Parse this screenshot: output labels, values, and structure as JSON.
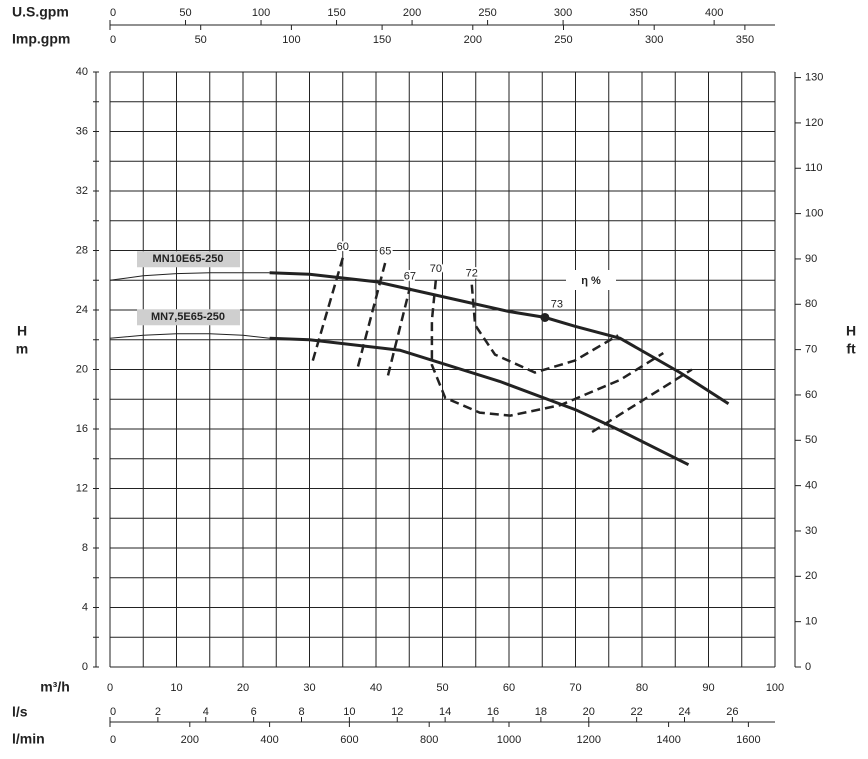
{
  "chart_data": {
    "type": "line",
    "y_label": "H",
    "y_unit": "m",
    "y2_label": "H",
    "y2_unit": "ft",
    "x_label": "m³/h",
    "xlim": [
      0,
      100
    ],
    "xticks": [
      0,
      10,
      20,
      30,
      40,
      50,
      60,
      70,
      80,
      90,
      100
    ],
    "xgrid": [
      0,
      5,
      10,
      15,
      20,
      25,
      30,
      35,
      40,
      45,
      50,
      55,
      60,
      65,
      70,
      75,
      80,
      85,
      90,
      95,
      100
    ],
    "ylim": [
      0,
      40
    ],
    "yticks": [
      0,
      4,
      8,
      12,
      16,
      20,
      24,
      28,
      32,
      36,
      40
    ],
    "ygrid": [
      0,
      2,
      4,
      6,
      8,
      10,
      12,
      14,
      16,
      18,
      20,
      22,
      24,
      26,
      28,
      30,
      32,
      34,
      36,
      38,
      40
    ],
    "y2lim": [
      0,
      131.23
    ],
    "y2ticks": [
      0,
      10,
      20,
      30,
      40,
      50,
      60,
      70,
      80,
      90,
      100,
      110,
      120,
      130
    ],
    "secondary_x_axes": [
      {
        "label": "U.S.gpm",
        "xlim": [
          0,
          440.3
        ],
        "xticks": [
          0,
          50,
          100,
          150,
          200,
          250,
          300,
          350,
          400
        ]
      },
      {
        "label": "Imp.gpm",
        "xlim": [
          0,
          366.6
        ],
        "xticks": [
          0,
          50,
          100,
          150,
          200,
          250,
          300,
          350
        ]
      },
      {
        "label": "l/s",
        "xlim": [
          0,
          27.78
        ],
        "xticks": [
          0,
          2,
          4,
          6,
          8,
          10,
          12,
          14,
          16,
          18,
          20,
          22,
          24,
          26
        ]
      },
      {
        "label": "l/min",
        "xlim": [
          0,
          1666.7
        ],
        "xticks": [
          0,
          200,
          400,
          600,
          800,
          1000,
          1200,
          1400,
          1600
        ]
      }
    ],
    "series": [
      {
        "name": "MN10E65-250",
        "color": "#222222",
        "x": [
          24,
          30,
          40,
          50,
          60,
          65.4,
          70,
          76.7,
          85.7,
          93
        ],
        "values": [
          26.5,
          26.4,
          25.9,
          24.9,
          23.9,
          23.5,
          22.9,
          22.1,
          19.8,
          17.7
        ],
        "extension_x": [
          0,
          5,
          10,
          15,
          20,
          24
        ],
        "extension_values": [
          26.0,
          26.3,
          26.45,
          26.5,
          26.5,
          26.5
        ]
      },
      {
        "name": "MN7,5E65-250",
        "color": "#222222",
        "x": [
          24,
          30,
          43.6,
          58.6,
          70,
          76.7,
          87
        ],
        "values": [
          22.1,
          22.0,
          21.3,
          19.2,
          17.3,
          15.9,
          13.6
        ],
        "extension_x": [
          0,
          5,
          10,
          15,
          20,
          24
        ],
        "extension_values": [
          22.1,
          22.3,
          22.4,
          22.4,
          22.3,
          22.1
        ]
      }
    ],
    "efficiency_label": "η %",
    "efficiency_curves": [
      {
        "name": "60",
        "x": [
          30.5,
          35
        ],
        "values": [
          20.6,
          27.5
        ]
      },
      {
        "name": "65",
        "x": [
          37.3,
          41.4
        ],
        "values": [
          20.2,
          27.2
        ]
      },
      {
        "name": "67",
        "x": [
          41.8,
          45.1,
          null,
          72.5,
          87.5
        ],
        "values": [
          19.6,
          25.5,
          null,
          15.8,
          20.0
        ]
      },
      {
        "name": "70",
        "x": [
          49.0,
          48.4,
          48.4,
          50.4,
          55.6,
          60.2,
          67.7,
          76.7,
          83.2
        ],
        "values": [
          26.0,
          23.3,
          20.3,
          18.1,
          17.1,
          16.9,
          17.6,
          19.3,
          21.1
        ]
      },
      {
        "name": "72",
        "x": [
          54.4,
          54.9,
          57.9,
          63.9,
          69.9,
          76.4
        ],
        "values": [
          25.7,
          23.0,
          21.0,
          19.8,
          20.6,
          22.3
        ]
      }
    ],
    "best_point": {
      "name": "73",
      "x": 65.4,
      "value": 23.5
    }
  }
}
